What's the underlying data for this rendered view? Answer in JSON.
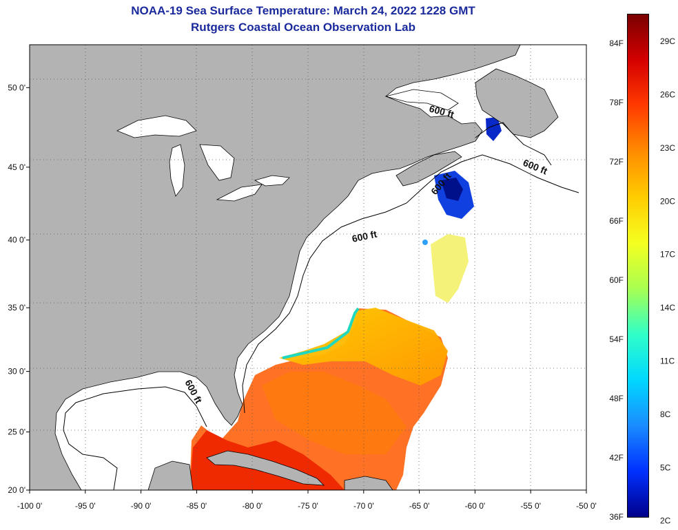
{
  "title": "NOAA-19 Sea Surface Temperature:  March 24, 2022 1228 GMT",
  "subtitle": "Rutgers Coastal Ocean Observation Lab",
  "map": {
    "lon_range": [
      -100,
      -50
    ],
    "lat_range": [
      20,
      52.5
    ],
    "lon_ticks": [
      {
        "value": -100,
        "label": "-100 0'"
      },
      {
        "value": -95,
        "label": "-95 0'"
      },
      {
        "value": -90,
        "label": "-90 0'"
      },
      {
        "value": -85,
        "label": "-85 0'"
      },
      {
        "value": -80,
        "label": "-80 0'"
      },
      {
        "value": -75,
        "label": "-75 0'"
      },
      {
        "value": -70,
        "label": "-70 0'"
      },
      {
        "value": -65,
        "label": "-65 0'"
      },
      {
        "value": -60,
        "label": "-60 0'"
      },
      {
        "value": -55,
        "label": "-55 0'"
      },
      {
        "value": -50,
        "label": "-50 0'"
      }
    ],
    "lat_ticks": [
      {
        "value": 20,
        "label": "20 0'"
      },
      {
        "value": 25,
        "label": "25 0'"
      },
      {
        "value": 30,
        "label": "30 0'"
      },
      {
        "value": 35,
        "label": "35 0'"
      },
      {
        "value": 40,
        "label": "40 0'"
      },
      {
        "value": 45,
        "label": "45 0'"
      },
      {
        "value": 50,
        "label": "50 0'"
      }
    ],
    "contour_labels": [
      "600 ft",
      "600 ft",
      "600 ft",
      "600 ft",
      "600 ft"
    ],
    "land_color": "#b3b3b3",
    "no_data_color": "#ffffff",
    "grid": "dotted"
  },
  "colorbar": {
    "fahrenheit": [
      {
        "value": 84,
        "label": "84F"
      },
      {
        "value": 78,
        "label": "78F"
      },
      {
        "value": 72,
        "label": "72F"
      },
      {
        "value": 66,
        "label": "66F"
      },
      {
        "value": 60,
        "label": "60F"
      },
      {
        "value": 54,
        "label": "54F"
      },
      {
        "value": 48,
        "label": "48F"
      },
      {
        "value": 42,
        "label": "42F"
      },
      {
        "value": 36,
        "label": "36F"
      }
    ],
    "celsius": [
      {
        "value": 29,
        "label": "29C"
      },
      {
        "value": 26,
        "label": "26C"
      },
      {
        "value": 23,
        "label": "23C"
      },
      {
        "value": 20,
        "label": "20C"
      },
      {
        "value": 17,
        "label": "17C"
      },
      {
        "value": 14,
        "label": "14C"
      },
      {
        "value": 11,
        "label": "11C"
      },
      {
        "value": 8,
        "label": "8C"
      },
      {
        "value": 5,
        "label": "5C"
      },
      {
        "value": 2,
        "label": "2C"
      }
    ],
    "colors": [
      "#7a0000",
      "#d40000",
      "#ff3b00",
      "#ff8c00",
      "#ffcc00",
      "#f5ff20",
      "#a8ff50",
      "#30ffc8",
      "#00d8ff",
      "#1a8cff",
      "#0030ff",
      "#00008a"
    ]
  }
}
